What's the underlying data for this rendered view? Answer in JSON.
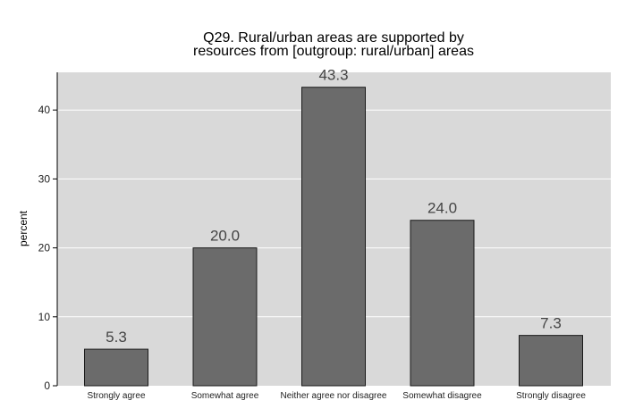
{
  "chart_data": {
    "type": "bar",
    "title_lines": [
      "Q29. Rural/urban areas are supported by",
      "resources from [outgroup: rural/urban] areas"
    ],
    "xlabel": "",
    "ylabel": "percent",
    "categories": [
      "Strongly agree",
      "Somewhat agree",
      "Neither agree nor disagree",
      "Somewhat disagree",
      "Strongly disagree"
    ],
    "values": [
      5.3,
      20.0,
      43.3,
      24.0,
      7.3
    ],
    "data_labels": [
      "5.3",
      "20.0",
      "43.3",
      "24.0",
      "7.3"
    ],
    "yticks": [
      0,
      10,
      20,
      30,
      40
    ],
    "ylim": [
      0,
      45
    ],
    "grid": true,
    "colors": {
      "plot_background": "#d9d9d9",
      "bar_fill": "#6b6b6b",
      "bar_stroke": "#1a1a1a",
      "grid": "#ffffff"
    }
  }
}
